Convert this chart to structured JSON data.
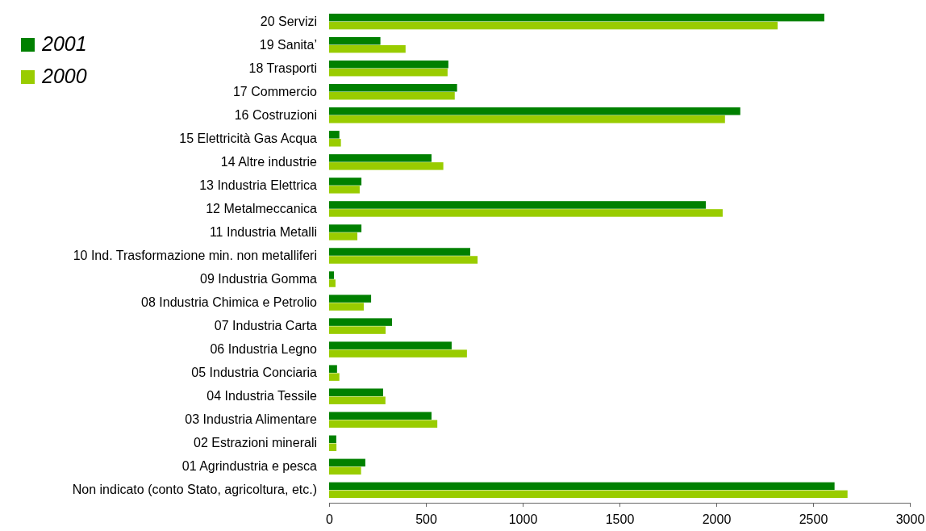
{
  "chart_data": {
    "type": "bar",
    "orientation": "horizontal",
    "categories": [
      "20 Servizi",
      "19 Sanita’",
      "18 Trasporti",
      "17 Commercio",
      "16 Costruzioni",
      "15 Elettricità Gas Acqua",
      "14 Altre industrie",
      "13 Industria Elettrica",
      "12 Metalmeccanica",
      "11 Industria Metalli",
      "10 Ind. Trasformazione min. non metalliferi",
      "09 Industria Gomma",
      "08 Industria Chimica e Petrolio",
      "07 Industria Carta",
      "06 Industria Legno",
      "05 Industria Conciaria",
      "04 Industria Tessile",
      "03 Industria Alimentare",
      "02 Estrazioni minerali",
      "01 Agrindustria e pesca",
      "Non indicato (conto Stato, agricoltura, etc.)"
    ],
    "series": [
      {
        "name": "2001",
        "color": "#008000",
        "values": [
          2558,
          265,
          616,
          661,
          2124,
          53,
          529,
          167,
          1946,
          167,
          729,
          25,
          217,
          325,
          633,
          41,
          279,
          529,
          37,
          187,
          2611
        ]
      },
      {
        "name": "2000",
        "color": "#99cc00",
        "values": [
          2317,
          395,
          612,
          649,
          2045,
          61,
          590,
          158,
          2033,
          146,
          767,
          33,
          179,
          292,
          712,
          53,
          291,
          559,
          38,
          165,
          2678
        ]
      }
    ],
    "xlim": [
      0,
      3000
    ],
    "xticks": [
      0,
      500,
      1000,
      1500,
      2000,
      2500,
      3000
    ],
    "grid": false,
    "legend": "top left"
  }
}
